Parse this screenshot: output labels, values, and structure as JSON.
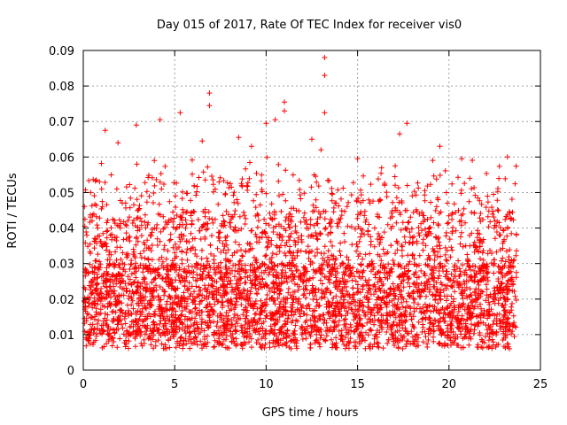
{
  "chart_data": {
    "type": "scatter",
    "title": "Day 015 of 2017, Rate Of TEC Index for receiver vis0",
    "xlabel": "GPS time / hours",
    "ylabel": "ROTI / TECUs",
    "xlim": [
      0,
      25
    ],
    "ylim": [
      0,
      0.09
    ],
    "xticks": [
      "0",
      "5",
      "10",
      "15",
      "20",
      "25"
    ],
    "yticks": [
      "0",
      "0.01",
      "0.02",
      "0.03",
      "0.04",
      "0.05",
      "0.06",
      "0.07",
      "0.08",
      "0.09"
    ],
    "grid": true,
    "marker": "plus",
    "color": "#ff0000",
    "point_count_generated": 4200,
    "notable_points": [
      {
        "x": 13.2,
        "y": 0.088
      },
      {
        "x": 13.2,
        "y": 0.083
      },
      {
        "x": 13.2,
        "y": 0.0725
      },
      {
        "x": 6.9,
        "y": 0.078
      },
      {
        "x": 6.9,
        "y": 0.0745
      },
      {
        "x": 11.0,
        "y": 0.0755
      },
      {
        "x": 11.0,
        "y": 0.073
      },
      {
        "x": 5.3,
        "y": 0.0725
      },
      {
        "x": 17.7,
        "y": 0.0695
      },
      {
        "x": 4.2,
        "y": 0.0705
      },
      {
        "x": 10.0,
        "y": 0.0695
      },
      {
        "x": 10.5,
        "y": 0.0705
      },
      {
        "x": 2.9,
        "y": 0.069
      },
      {
        "x": 1.2,
        "y": 0.0675
      },
      {
        "x": 17.3,
        "y": 0.0665
      },
      {
        "x": 19.5,
        "y": 0.063
      },
      {
        "x": 1.9,
        "y": 0.064
      },
      {
        "x": 8.5,
        "y": 0.0655
      },
      {
        "x": 6.5,
        "y": 0.0645
      },
      {
        "x": 23.2,
        "y": 0.06
      },
      {
        "x": 20.7,
        "y": 0.0595
      },
      {
        "x": 15.0,
        "y": 0.0595
      },
      {
        "x": 12.5,
        "y": 0.065
      },
      {
        "x": 13.0,
        "y": 0.062
      },
      {
        "x": 0.4,
        "y": 0.05
      },
      {
        "x": 9.2,
        "y": 0.063
      }
    ]
  }
}
